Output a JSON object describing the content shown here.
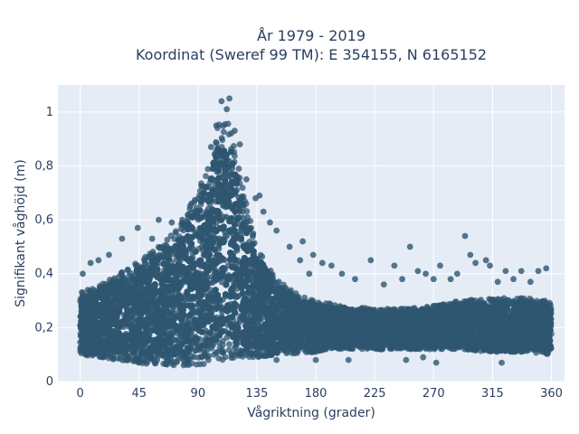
{
  "chart_data": {
    "type": "scatter",
    "title": [
      "År 1979 - 2019",
      "Koordinat (Sweref 99 TM): E 354155, N 6165152"
    ],
    "xlabel": "Vågriktning (grader)",
    "ylabel": "Signifikant våghöjd (m)",
    "xlim": [
      -17,
      370
    ],
    "ylim": [
      0,
      1.1
    ],
    "xticks": [
      0,
      45,
      90,
      135,
      180,
      225,
      270,
      315,
      360
    ],
    "xtick_labels": [
      "0",
      "45",
      "90",
      "135",
      "180",
      "225",
      "270",
      "315",
      "360"
    ],
    "yticks": [
      0,
      0.2,
      0.4,
      0.6,
      0.8,
      1
    ],
    "ytick_labels": [
      "0",
      "0,2",
      "0,4",
      "0,6",
      "0,8",
      "1"
    ],
    "grid": true,
    "marker_color": "#2f5670",
    "background_color": "#e5ecf6",
    "envelope": [
      {
        "x": 0,
        "low": 0.1,
        "high": 0.33
      },
      {
        "x": 15,
        "low": 0.09,
        "high": 0.36
      },
      {
        "x": 30,
        "low": 0.08,
        "high": 0.4
      },
      {
        "x": 45,
        "low": 0.07,
        "high": 0.45
      },
      {
        "x": 60,
        "low": 0.06,
        "high": 0.5
      },
      {
        "x": 75,
        "low": 0.06,
        "high": 0.58
      },
      {
        "x": 90,
        "low": 0.06,
        "high": 0.7
      },
      {
        "x": 100,
        "low": 0.07,
        "high": 0.85
      },
      {
        "x": 108,
        "low": 0.08,
        "high": 1.0
      },
      {
        "x": 115,
        "low": 0.08,
        "high": 0.95
      },
      {
        "x": 125,
        "low": 0.09,
        "high": 0.7
      },
      {
        "x": 135,
        "low": 0.09,
        "high": 0.5
      },
      {
        "x": 150,
        "low": 0.1,
        "high": 0.38
      },
      {
        "x": 165,
        "low": 0.1,
        "high": 0.33
      },
      {
        "x": 180,
        "low": 0.11,
        "high": 0.3
      },
      {
        "x": 200,
        "low": 0.12,
        "high": 0.28
      },
      {
        "x": 225,
        "low": 0.12,
        "high": 0.27
      },
      {
        "x": 250,
        "low": 0.12,
        "high": 0.27
      },
      {
        "x": 270,
        "low": 0.12,
        "high": 0.28
      },
      {
        "x": 290,
        "low": 0.12,
        "high": 0.3
      },
      {
        "x": 315,
        "low": 0.11,
        "high": 0.31
      },
      {
        "x": 340,
        "low": 0.11,
        "high": 0.31
      },
      {
        "x": 360,
        "low": 0.1,
        "high": 0.3
      }
    ],
    "outliers": [
      {
        "x": 108,
        "y": 1.04
      },
      {
        "x": 114,
        "y": 1.05
      },
      {
        "x": 112,
        "y": 1.01
      },
      {
        "x": 104,
        "y": 0.95
      },
      {
        "x": 118,
        "y": 0.93
      },
      {
        "x": 100,
        "y": 0.87
      },
      {
        "x": 122,
        "y": 0.88
      },
      {
        "x": 127,
        "y": 0.75
      },
      {
        "x": 134,
        "y": 0.68
      },
      {
        "x": 137,
        "y": 0.69
      },
      {
        "x": 140,
        "y": 0.63
      },
      {
        "x": 145,
        "y": 0.59
      },
      {
        "x": 150,
        "y": 0.56
      },
      {
        "x": 85,
        "y": 0.66
      },
      {
        "x": 78,
        "y": 0.6
      },
      {
        "x": 70,
        "y": 0.59
      },
      {
        "x": 60,
        "y": 0.6
      },
      {
        "x": 55,
        "y": 0.53
      },
      {
        "x": 44,
        "y": 0.57
      },
      {
        "x": 32,
        "y": 0.53
      },
      {
        "x": 22,
        "y": 0.47
      },
      {
        "x": 14,
        "y": 0.45
      },
      {
        "x": 8,
        "y": 0.44
      },
      {
        "x": 2,
        "y": 0.4
      },
      {
        "x": 160,
        "y": 0.5
      },
      {
        "x": 168,
        "y": 0.45
      },
      {
        "x": 175,
        "y": 0.4
      },
      {
        "x": 170,
        "y": 0.52
      },
      {
        "x": 178,
        "y": 0.47
      },
      {
        "x": 185,
        "y": 0.44
      },
      {
        "x": 192,
        "y": 0.43
      },
      {
        "x": 200,
        "y": 0.4
      },
      {
        "x": 210,
        "y": 0.38
      },
      {
        "x": 222,
        "y": 0.45
      },
      {
        "x": 232,
        "y": 0.36
      },
      {
        "x": 240,
        "y": 0.43
      },
      {
        "x": 246,
        "y": 0.38
      },
      {
        "x": 252,
        "y": 0.5
      },
      {
        "x": 258,
        "y": 0.41
      },
      {
        "x": 264,
        "y": 0.4
      },
      {
        "x": 270,
        "y": 0.38
      },
      {
        "x": 275,
        "y": 0.43
      },
      {
        "x": 283,
        "y": 0.38
      },
      {
        "x": 288,
        "y": 0.4
      },
      {
        "x": 294,
        "y": 0.54
      },
      {
        "x": 298,
        "y": 0.47
      },
      {
        "x": 302,
        "y": 0.44
      },
      {
        "x": 310,
        "y": 0.45
      },
      {
        "x": 313,
        "y": 0.43
      },
      {
        "x": 319,
        "y": 0.37
      },
      {
        "x": 325,
        "y": 0.41
      },
      {
        "x": 331,
        "y": 0.38
      },
      {
        "x": 337,
        "y": 0.41
      },
      {
        "x": 344,
        "y": 0.37
      },
      {
        "x": 350,
        "y": 0.41
      },
      {
        "x": 356,
        "y": 0.42
      },
      {
        "x": 322,
        "y": 0.07
      },
      {
        "x": 272,
        "y": 0.07
      },
      {
        "x": 205,
        "y": 0.08
      },
      {
        "x": 180,
        "y": 0.08
      },
      {
        "x": 150,
        "y": 0.08
      },
      {
        "x": 249,
        "y": 0.08
      },
      {
        "x": 262,
        "y": 0.09
      }
    ]
  }
}
